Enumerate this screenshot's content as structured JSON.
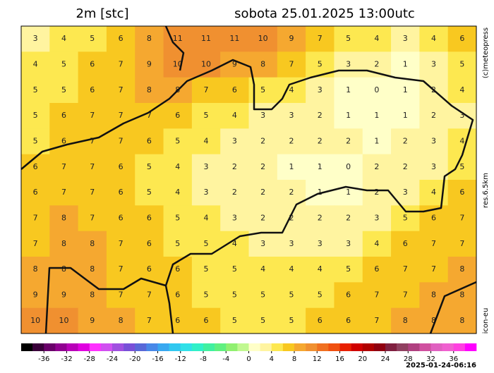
{
  "header": {
    "title": "2m [stc]",
    "subtitle": "sobota 25.01.2025 13:00utc"
  },
  "side_labels": [
    "(c)meteopress",
    "res.6.5km",
    "icon-eu"
  ],
  "timestamp": "2025-01-24-06:16",
  "field": {
    "rows": [
      [
        3,
        4,
        5,
        6,
        8,
        11,
        11,
        11,
        10,
        9,
        7,
        5,
        4,
        3,
        4,
        6
      ],
      [
        4,
        5,
        6,
        7,
        9,
        10,
        10,
        9,
        8,
        7,
        5,
        3,
        2,
        1,
        3,
        5
      ],
      [
        5,
        5,
        6,
        7,
        8,
        8,
        7,
        6,
        5,
        4,
        3,
        1,
        0,
        1,
        2,
        4
      ],
      [
        5,
        6,
        7,
        7,
        7,
        6,
        5,
        4,
        3,
        3,
        2,
        1,
        1,
        1,
        2,
        3
      ],
      [
        5,
        6,
        7,
        7,
        6,
        5,
        4,
        3,
        2,
        2,
        2,
        2,
        1,
        2,
        3,
        4
      ],
      [
        6,
        7,
        7,
        6,
        5,
        4,
        3,
        2,
        2,
        1,
        1,
        0,
        2,
        2,
        3,
        5
      ],
      [
        6,
        7,
        7,
        6,
        5,
        4,
        3,
        2,
        2,
        2,
        1,
        1,
        2,
        3,
        4,
        6
      ],
      [
        7,
        8,
        7,
        6,
        6,
        5,
        4,
        3,
        2,
        2,
        2,
        2,
        3,
        5,
        6,
        7
      ],
      [
        7,
        8,
        8,
        7,
        6,
        5,
        5,
        4,
        3,
        3,
        3,
        3,
        4,
        6,
        7,
        7
      ],
      [
        8,
        8,
        8,
        7,
        6,
        6,
        5,
        5,
        4,
        4,
        4,
        5,
        6,
        7,
        7,
        8
      ],
      [
        9,
        9,
        8,
        7,
        7,
        6,
        5,
        5,
        5,
        5,
        5,
        6,
        7,
        7,
        8,
        8
      ],
      [
        10,
        10,
        9,
        8,
        7,
        6,
        6,
        5,
        5,
        5,
        6,
        6,
        7,
        8,
        8,
        8
      ]
    ]
  },
  "colorbar": {
    "lim": [
      -40,
      40
    ],
    "step": 2,
    "ticks": [
      -36,
      -32,
      -28,
      -24,
      -20,
      -16,
      -12,
      -8,
      -4,
      0,
      4,
      8,
      12,
      16,
      20,
      24,
      28,
      32,
      36
    ],
    "colors": [
      "#000000",
      "#3a003a",
      "#6a006a",
      "#900090",
      "#b800b8",
      "#e000e0",
      "#ff30ff",
      "#d050f0",
      "#a050e0",
      "#7850d8",
      "#5868d8",
      "#4888e8",
      "#38a8f0",
      "#30c8f0",
      "#30e0e8",
      "#30f0c8",
      "#40f0a0",
      "#60f080",
      "#90f070",
      "#c0f890",
      "#ffffc8",
      "#fff4a0",
      "#fde850",
      "#f8c820",
      "#f5a830",
      "#f09030",
      "#f07020",
      "#f05010",
      "#e82000",
      "#d00000",
      "#b00000",
      "#900010",
      "#802040",
      "#904060",
      "#b04080",
      "#d050a0",
      "#e060c0",
      "#f060d0",
      "#ff40e0",
      "#ff00ff"
    ]
  }
}
